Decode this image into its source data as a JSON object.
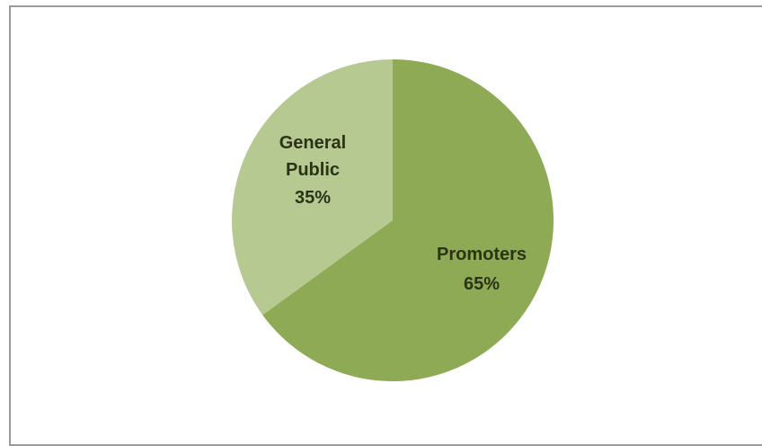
{
  "chart_data": {
    "type": "pie",
    "title": "",
    "slices": [
      {
        "label": "Promoters",
        "value": 65,
        "value_label": "65%",
        "color": "#8eaa54"
      },
      {
        "label": "General Public",
        "value": 35,
        "value_label": "35%",
        "color": "#b6c991"
      }
    ],
    "start_angle_deg": 0,
    "direction": "clockwise",
    "legend": "none"
  }
}
